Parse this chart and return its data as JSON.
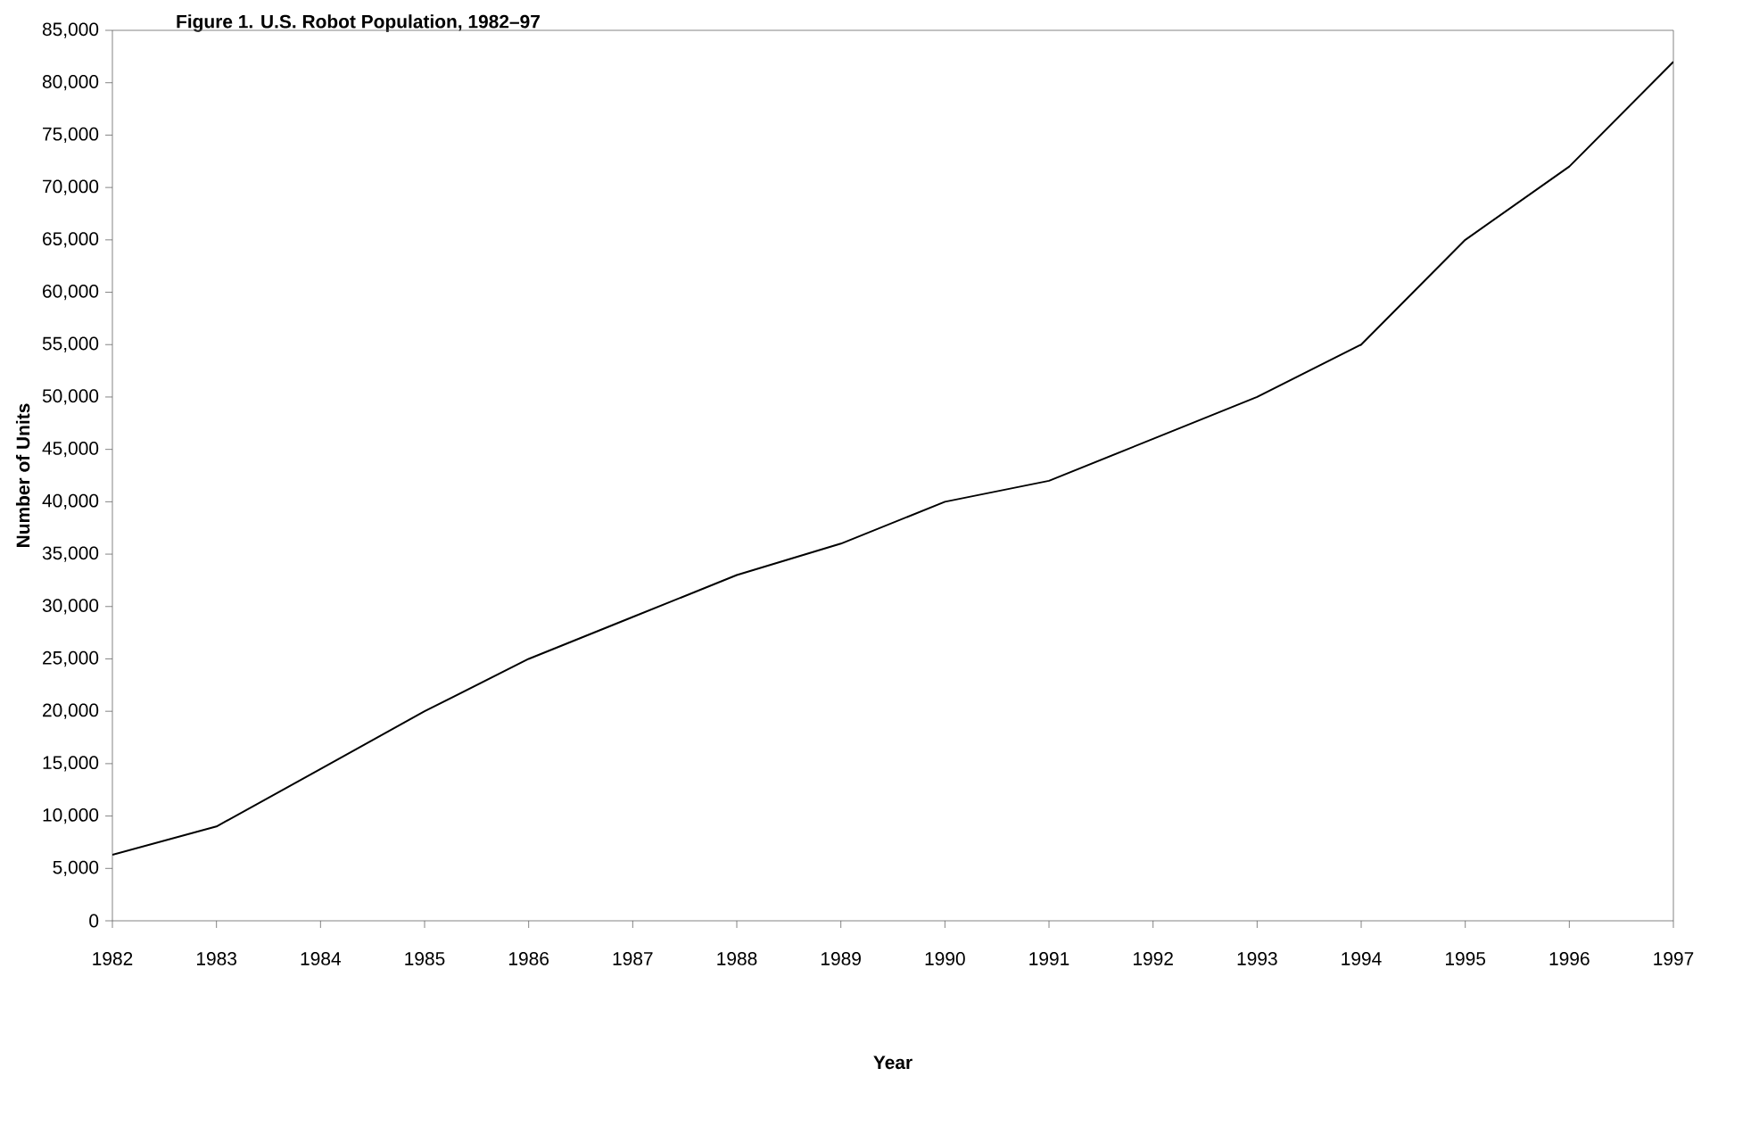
{
  "chart_data": {
    "type": "line",
    "title": "Figure 1.  U.S. Robot Population, 1982–97",
    "xlabel": "Year",
    "ylabel": "Number of Units",
    "x": [
      1982,
      1983,
      1984,
      1985,
      1986,
      1987,
      1988,
      1989,
      1990,
      1991,
      1992,
      1993,
      1994,
      1995,
      1996,
      1997
    ],
    "series": [
      {
        "color": "#000000",
        "values": [
          6300,
          9000,
          14500,
          20000,
          25000,
          29000,
          33000,
          36000,
          40000,
          42000,
          46000,
          50000,
          55000,
          65000,
          72000,
          82000
        ]
      }
    ],
    "xlim": [
      1982,
      1997
    ],
    "xticks": [
      1982,
      1983,
      1984,
      1985,
      1986,
      1987,
      1988,
      1989,
      1990,
      1991,
      1992,
      1993,
      1994,
      1995,
      1996,
      1997
    ],
    "ylim": [
      0,
      85000
    ],
    "yticks": [
      {
        "value": 0,
        "label": "0"
      },
      {
        "value": 5000,
        "label": "5,000"
      },
      {
        "value": 10000,
        "label": "10,000"
      },
      {
        "value": 15000,
        "label": "15,000"
      },
      {
        "value": 20000,
        "label": "20,000"
      },
      {
        "value": 25000,
        "label": "25,000"
      },
      {
        "value": 30000,
        "label": "30,000"
      },
      {
        "value": 35000,
        "label": "35,000"
      },
      {
        "value": 40000,
        "label": "40,000"
      },
      {
        "value": 45000,
        "label": "45,000"
      },
      {
        "value": 50000,
        "label": "50,000"
      },
      {
        "value": 55000,
        "label": "55,000"
      },
      {
        "value": 60000,
        "label": "60,000"
      },
      {
        "value": 65000,
        "label": "65,000"
      },
      {
        "value": 70000,
        "label": "70,000"
      },
      {
        "value": 75000,
        "label": "75,000"
      },
      {
        "value": 80000,
        "label": "80,000"
      },
      {
        "value": 85000,
        "label": "85,000"
      }
    ],
    "marker": "none",
    "line_style": "solid"
  }
}
